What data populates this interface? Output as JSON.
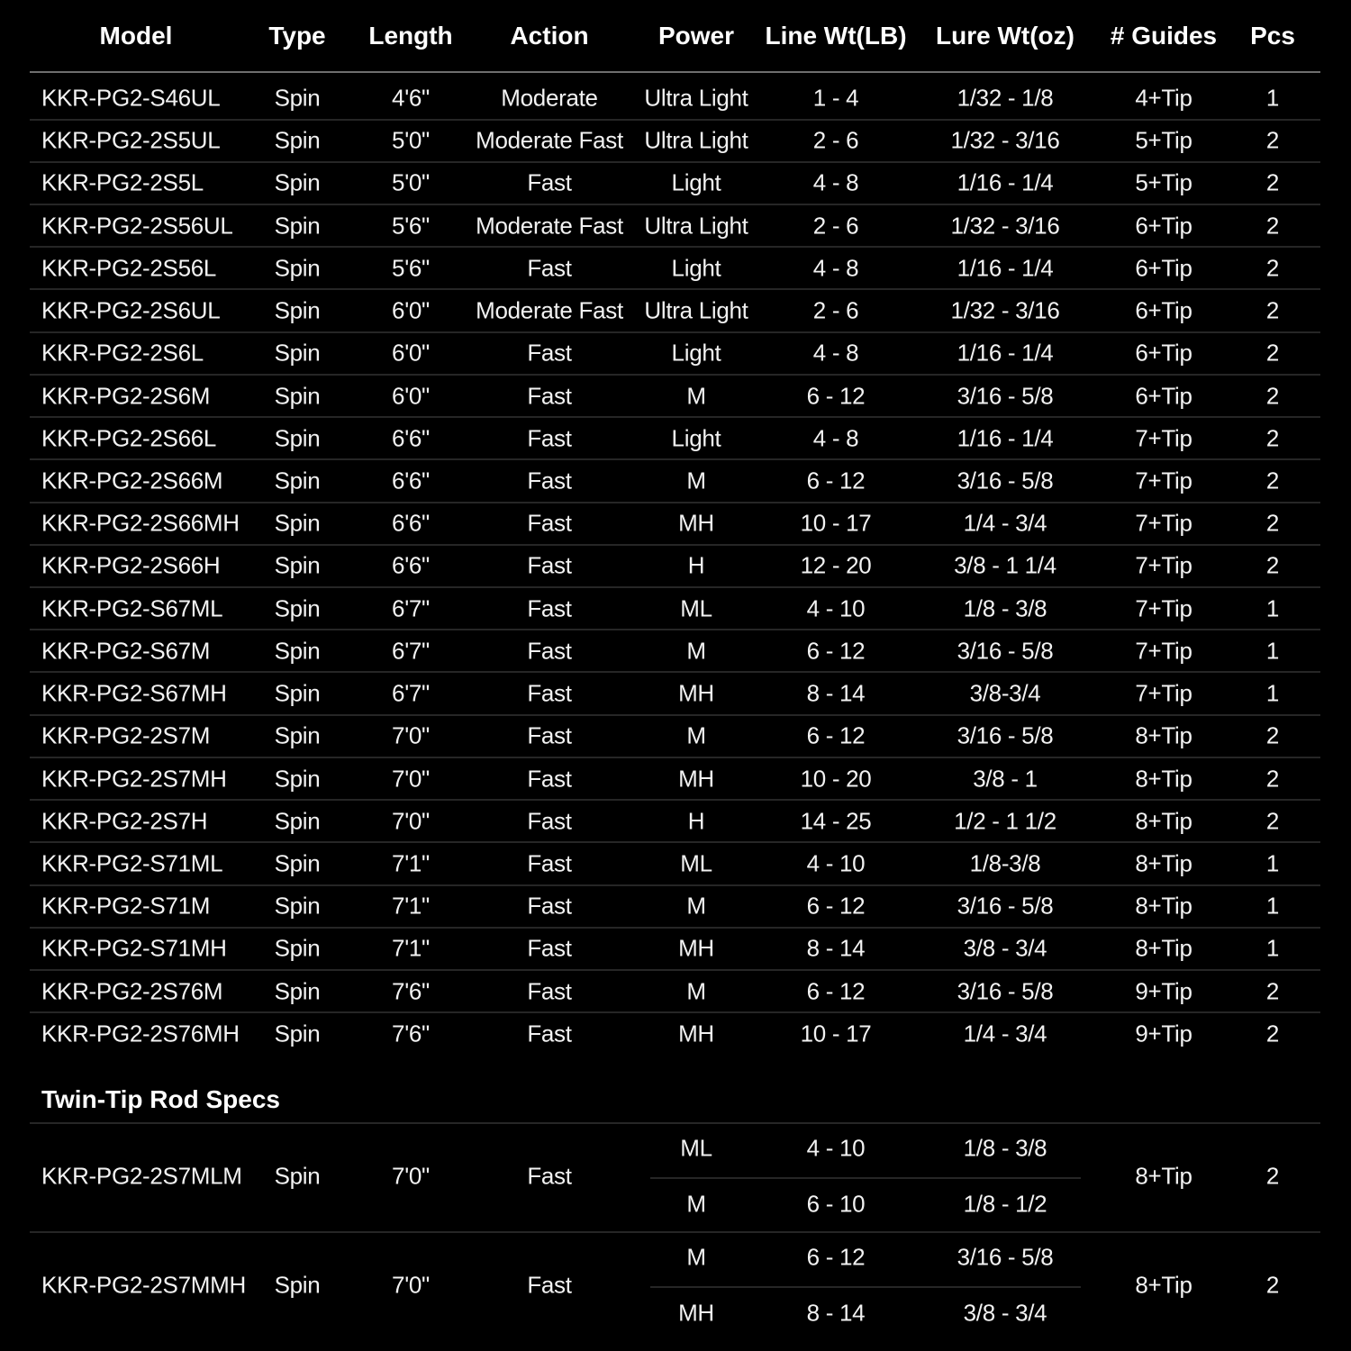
{
  "headers": [
    "Model",
    "Type",
    "Length",
    "Action",
    "Power",
    "Line Wt(LB)",
    "Lure Wt(oz)",
    "# Guides",
    "Pcs"
  ],
  "rows": [
    [
      "KKR-PG2-S46UL",
      "Spin",
      "4'6\"",
      "Moderate",
      "Ultra Light",
      "1 - 4",
      "1/32 - 1/8",
      "4+Tip",
      "1"
    ],
    [
      "KKR-PG2-2S5UL",
      "Spin",
      "5'0\"",
      "Moderate Fast",
      "Ultra Light",
      "2 - 6",
      "1/32 - 3/16",
      "5+Tip",
      "2"
    ],
    [
      "KKR-PG2-2S5L",
      "Spin",
      "5'0\"",
      "Fast",
      "Light",
      "4 - 8",
      "1/16 - 1/4",
      "5+Tip",
      "2"
    ],
    [
      "KKR-PG2-2S56UL",
      "Spin",
      "5'6\"",
      "Moderate Fast",
      "Ultra Light",
      "2 - 6",
      "1/32 - 3/16",
      "6+Tip",
      "2"
    ],
    [
      "KKR-PG2-2S56L",
      "Spin",
      "5'6\"",
      "Fast",
      "Light",
      "4 - 8",
      "1/16 - 1/4",
      "6+Tip",
      "2"
    ],
    [
      "KKR-PG2-2S6UL",
      "Spin",
      "6'0\"",
      "Moderate Fast",
      "Ultra Light",
      "2 - 6",
      "1/32 - 3/16",
      "6+Tip",
      "2"
    ],
    [
      "KKR-PG2-2S6L",
      "Spin",
      "6'0\"",
      "Fast",
      "Light",
      "4 - 8",
      "1/16 - 1/4",
      "6+Tip",
      "2"
    ],
    [
      "KKR-PG2-2S6M",
      "Spin",
      "6'0\"",
      "Fast",
      "M",
      "6 - 12",
      "3/16 - 5/8",
      "6+Tip",
      "2"
    ],
    [
      "KKR-PG2-2S66L",
      "Spin",
      "6'6\"",
      "Fast",
      "Light",
      "4 - 8",
      "1/16 - 1/4",
      "7+Tip",
      "2"
    ],
    [
      "KKR-PG2-2S66M",
      "Spin",
      "6'6\"",
      "Fast",
      "M",
      "6 - 12",
      "3/16 - 5/8",
      "7+Tip",
      "2"
    ],
    [
      "KKR-PG2-2S66MH",
      "Spin",
      "6'6\"",
      "Fast",
      "MH",
      "10 - 17",
      "1/4 - 3/4",
      "7+Tip",
      "2"
    ],
    [
      "KKR-PG2-2S66H",
      "Spin",
      "6'6\"",
      "Fast",
      "H",
      "12 - 20",
      "3/8 - 1 1/4",
      "7+Tip",
      "2"
    ],
    [
      "KKR-PG2-S67ML",
      "Spin",
      "6'7\"",
      "Fast",
      "ML",
      "4 - 10",
      "1/8 - 3/8",
      "7+Tip",
      "1"
    ],
    [
      "KKR-PG2-S67M",
      "Spin",
      "6'7\"",
      "Fast",
      "M",
      "6 - 12",
      "3/16 - 5/8",
      "7+Tip",
      "1"
    ],
    [
      "KKR-PG2-S67MH",
      "Spin",
      "6'7\"",
      "Fast",
      "MH",
      "8 - 14",
      "3/8-3/4",
      "7+Tip",
      "1"
    ],
    [
      "KKR-PG2-2S7M",
      "Spin",
      "7'0\"",
      "Fast",
      "M",
      "6 - 12",
      "3/16 - 5/8",
      "8+Tip",
      "2"
    ],
    [
      "KKR-PG2-2S7MH",
      "Spin",
      "7'0\"",
      "Fast",
      "MH",
      "10 - 20",
      "3/8 - 1",
      "8+Tip",
      "2"
    ],
    [
      "KKR-PG2-2S7H",
      "Spin",
      "7'0\"",
      "Fast",
      "H",
      "14 - 25",
      "1/2 - 1 1/2",
      "8+Tip",
      "2"
    ],
    [
      "KKR-PG2-S71ML",
      "Spin",
      "7'1\"",
      "Fast",
      "ML",
      "4 - 10",
      "1/8-3/8",
      "8+Tip",
      "1"
    ],
    [
      "KKR-PG2-S71M",
      "Spin",
      "7'1\"",
      "Fast",
      "M",
      "6 - 12",
      "3/16 - 5/8",
      "8+Tip",
      "1"
    ],
    [
      "KKR-PG2-S71MH",
      "Spin",
      "7'1\"",
      "Fast",
      "MH",
      "8 - 14",
      "3/8 - 3/4",
      "8+Tip",
      "1"
    ],
    [
      "KKR-PG2-2S76M",
      "Spin",
      "7'6\"",
      "Fast",
      "M",
      "6 - 12",
      "3/16 - 5/8",
      "9+Tip",
      "2"
    ],
    [
      "KKR-PG2-2S76MH",
      "Spin",
      "7'6\"",
      "Fast",
      "MH",
      "10 - 17",
      "1/4 - 3/4",
      "9+Tip",
      "2"
    ]
  ],
  "twin_tip": {
    "title": "Twin-Tip Rod Specs",
    "rows": [
      {
        "model": "KKR-PG2-2S7MLM",
        "type": "Spin",
        "length": "7'0\"",
        "action": "Fast",
        "tips": [
          {
            "power": "ML",
            "line": "4 - 10",
            "lure": "1/8 - 3/8"
          },
          {
            "power": "M",
            "line": "6 - 10",
            "lure": "1/8 - 1/2"
          }
        ],
        "guides": "8+Tip",
        "pcs": "2"
      },
      {
        "model": "KKR-PG2-2S7MMH",
        "type": "Spin",
        "length": "7'0\"",
        "action": "Fast",
        "tips": [
          {
            "power": "M",
            "line": "6 - 12",
            "lure": "3/16 - 5/8"
          },
          {
            "power": "MH",
            "line": "8 - 14",
            "lure": "3/8 - 3/4"
          }
        ],
        "guides": "8+Tip",
        "pcs": "2"
      }
    ]
  }
}
